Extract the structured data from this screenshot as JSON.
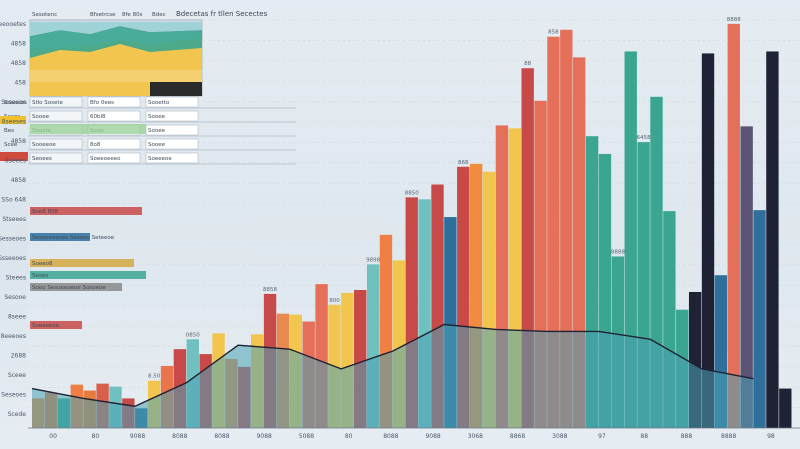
{
  "chart_data": {
    "type": "bar",
    "title": "Bdecetas fr tllen Secectes",
    "header_labels": [
      "Sesotenc",
      "Bfsetrcse",
      "8fe 80s",
      "Bdec"
    ],
    "y_ticks": [
      "Seeooetes",
      "4858",
      "4858",
      "458",
      "Soseeos",
      "8seeses",
      "4858",
      "8seees",
      "4858",
      "SSo 648",
      "Stseees",
      "Sesseoes",
      "Ssseeoes",
      "Steees",
      "Sesooe",
      "8seee",
      "8eeeoes",
      "2688",
      "Sceee",
      "Seseoes",
      "Scede"
    ],
    "x_ticks": [
      "00",
      "80",
      "9088",
      "8088",
      "8088",
      "9088",
      "5088",
      "80",
      "8088",
      "9088",
      "3068",
      "8868",
      "3088",
      "97",
      "88",
      "888",
      "8888",
      "98"
    ],
    "ylim": [
      0,
      420
    ],
    "series_colors": [
      "#e88a4d",
      "#c74a48",
      "#f2c54e",
      "#3aa591",
      "#6fc1c0",
      "#2e6f9c",
      "#1f2235",
      "#e5705a"
    ],
    "bars": [
      {
        "value": 30,
        "color": "#f08c3e"
      },
      {
        "value": 36,
        "color": "#e47a3c"
      },
      {
        "value": 30,
        "color": "#3aa591"
      },
      {
        "value": 44,
        "color": "#ef7f43"
      },
      {
        "value": 38,
        "color": "#e57b3c"
      },
      {
        "value": 45,
        "color": "#d75f4b"
      },
      {
        "value": 42,
        "color": "#6fc1c0"
      },
      {
        "value": 30,
        "color": "#c74a48"
      },
      {
        "value": 20,
        "color": "#2e6f9c"
      },
      {
        "value": 48,
        "color": "#f2c54e"
      },
      {
        "value": 63,
        "color": "#e8754b"
      },
      {
        "value": 80,
        "color": "#c74a48"
      },
      {
        "value": 90,
        "color": "#6fc1c0"
      },
      {
        "value": 75,
        "color": "#c74a48"
      },
      {
        "value": 96,
        "color": "#f2c54e"
      },
      {
        "value": 70,
        "color": "#e88a4d"
      },
      {
        "value": 62,
        "color": "#c74a48"
      },
      {
        "value": 95,
        "color": "#f2c54e"
      },
      {
        "value": 136,
        "color": "#c74a48"
      },
      {
        "value": 116,
        "color": "#e88a4d"
      },
      {
        "value": 115,
        "color": "#f2c54e"
      },
      {
        "value": 108,
        "color": "#e5705a"
      },
      {
        "value": 146,
        "color": "#e5705a"
      },
      {
        "value": 125,
        "color": "#f2c54e"
      },
      {
        "value": 137,
        "color": "#f2c54e"
      },
      {
        "value": 140,
        "color": "#c74a48"
      },
      {
        "value": 166,
        "color": "#6fc1c0"
      },
      {
        "value": 196,
        "color": "#ef7f43"
      },
      {
        "value": 170,
        "color": "#f2c54e"
      },
      {
        "value": 234,
        "color": "#c74a48"
      },
      {
        "value": 232,
        "color": "#6fc1c0"
      },
      {
        "value": 247,
        "color": "#c74a48"
      },
      {
        "value": 214,
        "color": "#2e6f9c"
      },
      {
        "value": 265,
        "color": "#c74a48"
      },
      {
        "value": 268,
        "color": "#f08c3e"
      },
      {
        "value": 260,
        "color": "#f2c54e"
      },
      {
        "value": 307,
        "color": "#e5705a"
      },
      {
        "value": 304,
        "color": "#f2c54e"
      },
      {
        "value": 365,
        "color": "#c74a48"
      },
      {
        "value": 332,
        "color": "#e5705a"
      },
      {
        "value": 397,
        "color": "#e5705a"
      },
      {
        "value": 404,
        "color": "#e5705a"
      },
      {
        "value": 376,
        "color": "#e5705a"
      },
      {
        "value": 296,
        "color": "#3aa591"
      },
      {
        "value": 278,
        "color": "#3aa591"
      },
      {
        "value": 174,
        "color": "#3aa591"
      },
      {
        "value": 382,
        "color": "#3aa591"
      },
      {
        "value": 290,
        "color": "#3aa591"
      },
      {
        "value": 336,
        "color": "#3aa591"
      },
      {
        "value": 220,
        "color": "#3aa591"
      },
      {
        "value": 120,
        "color": "#3aa591"
      },
      {
        "value": 138,
        "color": "#1f2235"
      },
      {
        "value": 380,
        "color": "#1f2235"
      },
      {
        "value": 155,
        "color": "#2e6f9c"
      },
      {
        "value": 410,
        "color": "#e5705a"
      },
      {
        "value": 306,
        "color": "#5a5372"
      },
      {
        "value": 221,
        "color": "#2e6f9c"
      },
      {
        "value": 382,
        "color": "#1f2235"
      },
      {
        "value": 40,
        "color": "#1f2235"
      }
    ],
    "bar_value_labels": [
      "8.50",
      "0850",
      "8858",
      "800",
      "9898",
      "8850",
      "868",
      "88",
      "858",
      "8888",
      "6458",
      "8888"
    ],
    "area_line": [
      {
        "x": 0,
        "y": 40
      },
      {
        "x": 4,
        "y": 30
      },
      {
        "x": 8,
        "y": 22
      },
      {
        "x": 12,
        "y": 46
      },
      {
        "x": 16,
        "y": 84
      },
      {
        "x": 20,
        "y": 80
      },
      {
        "x": 24,
        "y": 60
      },
      {
        "x": 28,
        "y": 78
      },
      {
        "x": 32,
        "y": 105
      },
      {
        "x": 36,
        "y": 100
      },
      {
        "x": 40,
        "y": 98
      },
      {
        "x": 44,
        "y": 98
      },
      {
        "x": 48,
        "y": 90
      },
      {
        "x": 52,
        "y": 60
      },
      {
        "x": 56,
        "y": 50
      }
    ],
    "table_rows": [
      {
        "left": "Soseeos",
        "cells": [
          "Stlo Sosete",
          "Bfo 0ees",
          "Sooetto"
        ]
      },
      {
        "left": "Seeos",
        "cells": [
          "Sooee",
          "60bl8",
          "Sooee"
        ]
      },
      {
        "left": "Bes",
        "cells": [
          "Sooete",
          "Sooe",
          "Sooee"
        ]
      },
      {
        "left": "Scee",
        "cells": [
          "Sooeeoe",
          "8o8",
          "Sooee"
        ]
      },
      {
        "left": "Se8o",
        "cells": [
          "Seoees",
          "Soeeoeeeo",
          "Soeeeoe"
        ]
      }
    ],
    "legend": [
      {
        "name": "Soe8 808",
        "color": "#c74a48"
      },
      {
        "name": "Sesooeeeoes Seseeo Seteeoe",
        "color": "#2e6f9c"
      },
      {
        "name": "Soeeo8",
        "color": "#d4a843"
      },
      {
        "name": "Soseo",
        "color": "#3aa591"
      },
      {
        "name": "Sooo Sesoeeoeoe Sosoeoe",
        "color": "#888888"
      },
      {
        "name": "Soeeeeoe",
        "color": "#c74a48"
      }
    ]
  }
}
